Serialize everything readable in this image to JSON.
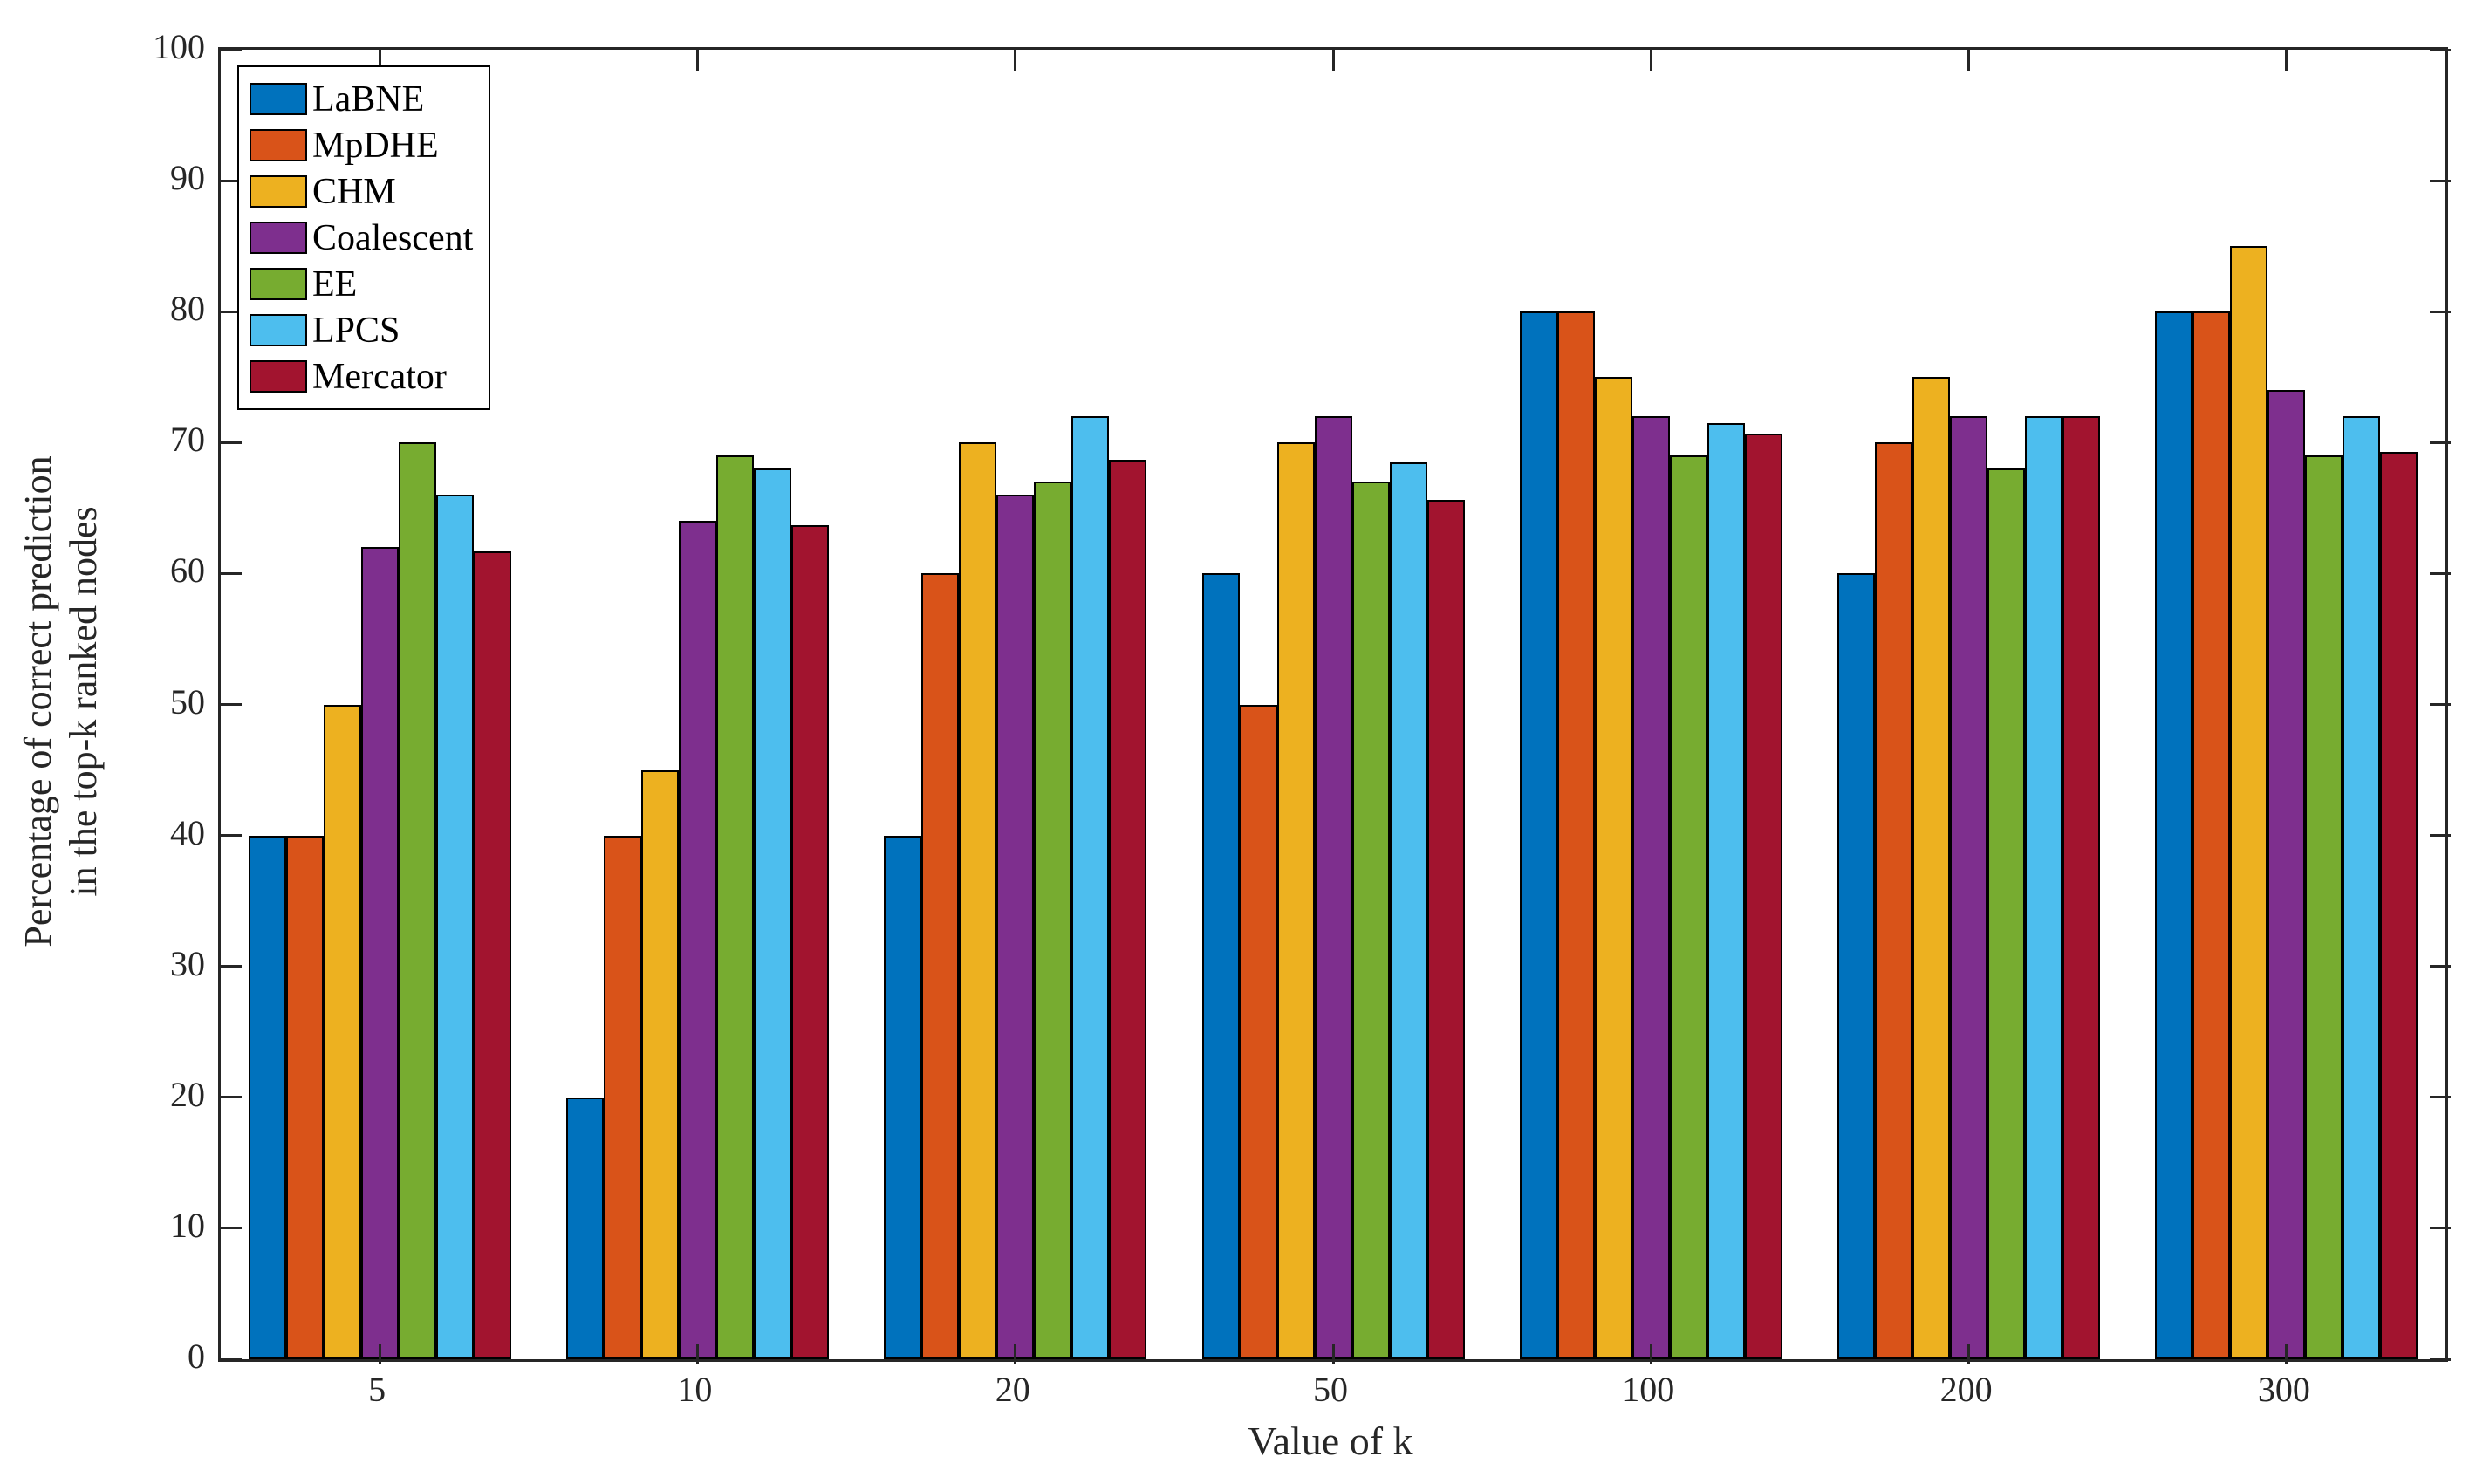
{
  "figure": {
    "background": "#ffffff",
    "axes_color": "#262626"
  },
  "chart_data": {
    "type": "bar",
    "title": "",
    "xlabel": "Value of k",
    "ylabel_lines": [
      "Percentage of correct prediction",
      "in the top-k ranked nodes"
    ],
    "categories": [
      "5",
      "10",
      "20",
      "50",
      "100",
      "200",
      "300"
    ],
    "series": [
      {
        "name": "LaBNE",
        "color": "#0072BD",
        "values": [
          40,
          20,
          40,
          60,
          80,
          60,
          80
        ]
      },
      {
        "name": "MpDHE",
        "color": "#D95319",
        "values": [
          40,
          40,
          60,
          50,
          80,
          70,
          80
        ]
      },
      {
        "name": "CHM",
        "color": "#EDB120",
        "values": [
          50,
          45,
          70,
          70,
          75,
          75,
          85
        ]
      },
      {
        "name": "Coalescent",
        "color": "#7E2F8E",
        "values": [
          62,
          64,
          66,
          72,
          72,
          72,
          74
        ]
      },
      {
        "name": "EE",
        "color": "#77AC30",
        "values": [
          70,
          69,
          67,
          67,
          69,
          68,
          69
        ]
      },
      {
        "name": "LPCS",
        "color": "#4DBEEE",
        "values": [
          66,
          68,
          72,
          68.5,
          71.5,
          72,
          72
        ]
      },
      {
        "name": "Mercator",
        "color": "#A2142F",
        "values": [
          61.7,
          63.7,
          68.7,
          65.6,
          70.7,
          72,
          69.3
        ]
      }
    ],
    "ylim": [
      0,
      100
    ],
    "yticks": [
      0,
      10,
      20,
      30,
      40,
      50,
      60,
      70,
      80,
      90,
      100
    ],
    "grid": false,
    "legend_position": "top-left",
    "bar_edge_color": "#000000"
  }
}
